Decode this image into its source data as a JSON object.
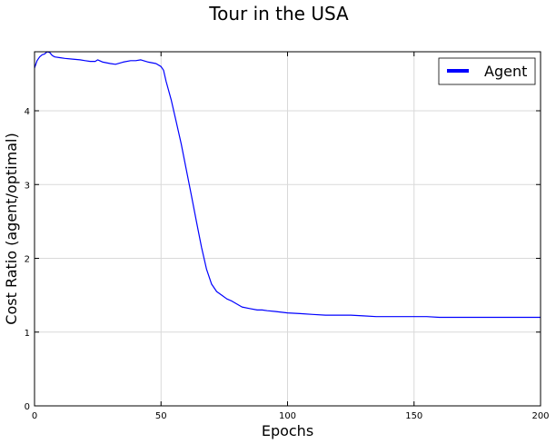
{
  "chart_data": {
    "type": "line",
    "title": "Tour in the USA",
    "xlabel": "Epochs",
    "ylabel": "Cost Ratio (agent/optimal)",
    "xlim": [
      0,
      200
    ],
    "ylim": [
      0,
      4.8
    ],
    "xticks": [
      0,
      50,
      100,
      150,
      200
    ],
    "yticks": [
      0,
      1,
      2,
      3,
      4
    ],
    "grid": true,
    "legend_position": "top-right",
    "series": [
      {
        "name": "Agent",
        "color": "#0000ff",
        "x": [
          0,
          1,
          2,
          3,
          4,
          5,
          6,
          7,
          8,
          10,
          12,
          15,
          18,
          20,
          22,
          24,
          25,
          27,
          30,
          32,
          35,
          38,
          40,
          42,
          45,
          48,
          50,
          51,
          52,
          54,
          56,
          58,
          60,
          62,
          64,
          66,
          68,
          70,
          72,
          74,
          76,
          78,
          80,
          82,
          85,
          88,
          90,
          92,
          95,
          100,
          105,
          110,
          115,
          120,
          125,
          130,
          135,
          140,
          145,
          150,
          155,
          160,
          170,
          180,
          190,
          200
        ],
        "y": [
          4.58,
          4.68,
          4.73,
          4.76,
          4.77,
          4.8,
          4.79,
          4.75,
          4.73,
          4.72,
          4.71,
          4.7,
          4.69,
          4.68,
          4.67,
          4.67,
          4.69,
          4.66,
          4.64,
          4.63,
          4.66,
          4.68,
          4.68,
          4.69,
          4.66,
          4.64,
          4.6,
          4.55,
          4.4,
          4.15,
          3.85,
          3.55,
          3.2,
          2.85,
          2.5,
          2.15,
          1.85,
          1.65,
          1.55,
          1.5,
          1.45,
          1.42,
          1.38,
          1.34,
          1.32,
          1.3,
          1.3,
          1.29,
          1.28,
          1.26,
          1.25,
          1.24,
          1.23,
          1.23,
          1.23,
          1.22,
          1.21,
          1.21,
          1.21,
          1.21,
          1.21,
          1.2,
          1.2,
          1.2,
          1.2,
          1.2
        ]
      }
    ]
  }
}
